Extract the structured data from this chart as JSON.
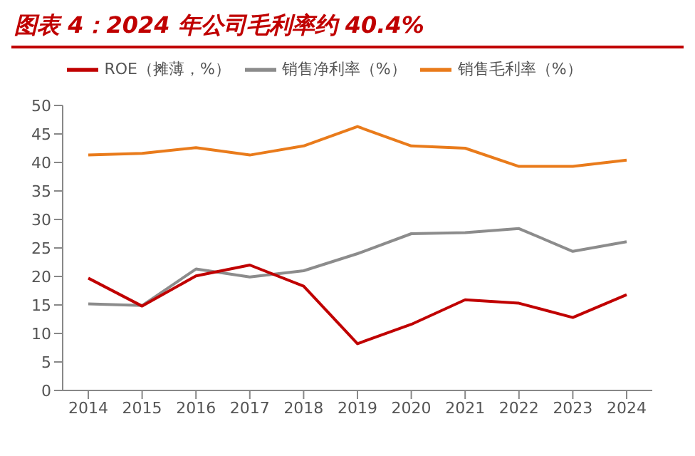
{
  "chart_data": {
    "type": "line",
    "title": "图表 4：2024 年公司毛利率约 40.4%",
    "categories": [
      "2014",
      "2015",
      "2016",
      "2017",
      "2018",
      "2019",
      "2020",
      "2021",
      "2022",
      "2023",
      "2024"
    ],
    "series": [
      {
        "name": "销售毛利率（%）",
        "color": "#e97b1b",
        "values": [
          41.3,
          41.6,
          42.6,
          41.3,
          42.9,
          46.3,
          42.9,
          42.5,
          39.3,
          39.3,
          40.4
        ]
      },
      {
        "name": "销售净利率（%）",
        "color": "#8c8c8c",
        "values": [
          15.2,
          14.9,
          21.3,
          19.9,
          21.0,
          24.0,
          27.5,
          27.7,
          28.4,
          24.4,
          26.1
        ]
      },
      {
        "name": "ROE（摊薄，%）",
        "color": "#c00000",
        "values": [
          19.7,
          14.8,
          20.1,
          22.0,
          18.3,
          8.2,
          11.6,
          15.9,
          15.3,
          12.8,
          16.8
        ]
      }
    ],
    "ylim": [
      0,
      50
    ],
    "yticks": [
      0,
      5,
      10,
      15,
      20,
      25,
      30,
      35,
      40,
      45,
      50
    ],
    "grid": false,
    "legend": "top",
    "marker": "none",
    "line_style": "solid"
  }
}
